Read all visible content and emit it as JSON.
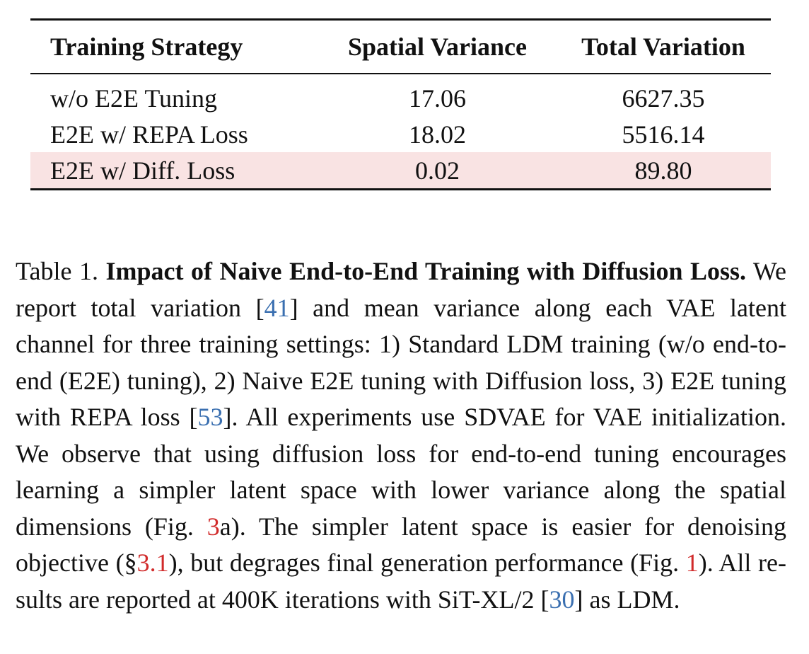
{
  "table": {
    "headers": [
      "Training Strategy",
      "Spatial Variance",
      "Total Variation"
    ],
    "rows": [
      {
        "strategy": "w/o E2E Tuning",
        "spatial_variance": "17.06",
        "total_variation": "6627.35"
      },
      {
        "strategy": "E2E w/ REPA Loss",
        "spatial_variance": "18.02",
        "total_variation": "5516.14"
      },
      {
        "strategy": "E2E w/ Diff. Loss",
        "spatial_variance": "0.02",
        "total_variation": "89.80"
      }
    ],
    "highlight_color": "#f9e3e3"
  },
  "caption": {
    "label": "Table 1.",
    "title": "Impact of Naive End-to-End Training with Diffusion Loss.",
    "seg1": "We report total variation [",
    "ref1": "41",
    "seg2": "] and mean variance along each VAE latent channel for three training settings: 1) Standard LDM training (w/o end-to-end (E2E) tuning), 2) Naive E2E tuning with Diffusion loss, 3) E2E tuning with REPA loss [",
    "ref2": "53",
    "seg3": "]. All experi­ments use SDVAE for VAE initialization. We observe that using diffusion loss for end-to-end tuning encourages learning a sim­pler latent space with lower variance along the spatial dimensions (Fig. ",
    "ref3": "3",
    "seg4": "a). The simpler latent space is easier for denoising objective (§",
    "ref4": "3.1",
    "seg5": "), but degrages final generation performance (Fig. ",
    "ref5": "1",
    "seg6": "). All re­sults are reported at 400K iterations with SiT-XL/2 [",
    "ref6": "30",
    "seg7": "] as LDM.",
    "citation_color": "#3a6fb0",
    "crossref_color": "#d12b2b"
  }
}
